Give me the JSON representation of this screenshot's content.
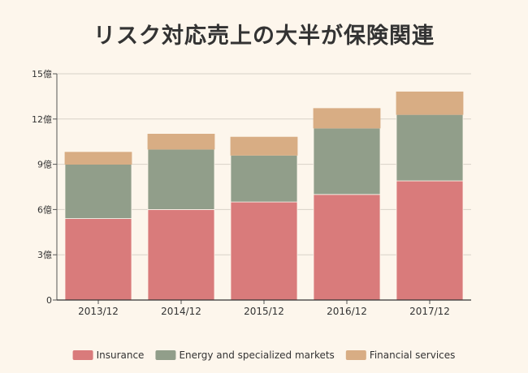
{
  "chart_data": {
    "type": "bar",
    "stacked": true,
    "title": "リスク対応売上の大半が保険関連",
    "xlabel": "",
    "ylabel": "",
    "categories": [
      "2013/12",
      "2014/12",
      "2015/12",
      "2016/12",
      "2017/12"
    ],
    "series": [
      {
        "name": "Insurance",
        "color": "#d97b7b",
        "values": [
          5.4,
          6.0,
          6.5,
          7.0,
          7.9
        ]
      },
      {
        "name": "Energy and specialized markets",
        "color": "#919e8a",
        "values": [
          3.6,
          4.0,
          3.1,
          4.4,
          4.4
        ]
      },
      {
        "name": "Financial services",
        "color": "#d8ad84",
        "values": [
          0.8,
          1.0,
          1.2,
          1.3,
          1.5
        ]
      }
    ],
    "ylim": [
      0,
      15
    ],
    "yticks": [
      0,
      3,
      6,
      9,
      12,
      15
    ],
    "ytick_labels": [
      "0",
      "3億",
      "6億",
      "9億",
      "12億",
      "15億"
    ],
    "grid": true,
    "legend": "bottom"
  }
}
